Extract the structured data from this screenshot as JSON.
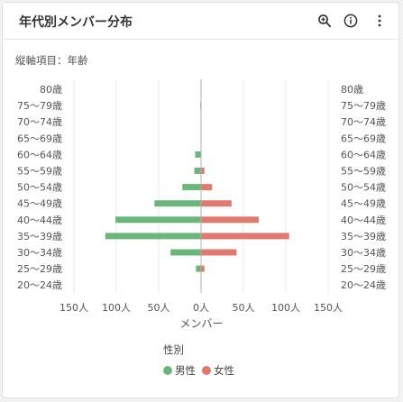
{
  "card": {
    "title": "年代別メンバー分布",
    "subtitle": "縦軸項目：年齢",
    "icons": [
      "zoom-in-icon",
      "info-icon",
      "more-vertical-icon"
    ]
  },
  "colors": {
    "male": "#6ab77c",
    "female": "#e2796f",
    "grid": "#e8e8e8",
    "axis_text": "#555555"
  },
  "chart_data": {
    "type": "bar",
    "orientation": "horizontal-butterfly",
    "categories": [
      "80歳",
      "75〜79歳",
      "70〜74歳",
      "65〜69歳",
      "60〜64歳",
      "55〜59歳",
      "50〜54歳",
      "45〜49歳",
      "40〜44歳",
      "35〜39歳",
      "30〜34歳",
      "25〜29歳",
      "20〜24歳"
    ],
    "series": [
      {
        "name": "男性",
        "values": [
          0,
          1,
          0,
          0,
          7,
          8,
          22,
          55,
          101,
          113,
          36,
          6,
          0
        ]
      },
      {
        "name": "女性",
        "values": [
          0,
          0,
          0,
          0,
          0,
          4,
          13,
          36,
          68,
          104,
          42,
          4,
          0
        ]
      }
    ],
    "xticks": [
      "150人",
      "100人",
      "50人",
      "0人",
      "50人",
      "100人",
      "150人"
    ],
    "xlim": [
      -150,
      150
    ],
    "xlabel": "メンバー",
    "legend_title": "性別",
    "legend_position": "bottom",
    "grid": true
  }
}
